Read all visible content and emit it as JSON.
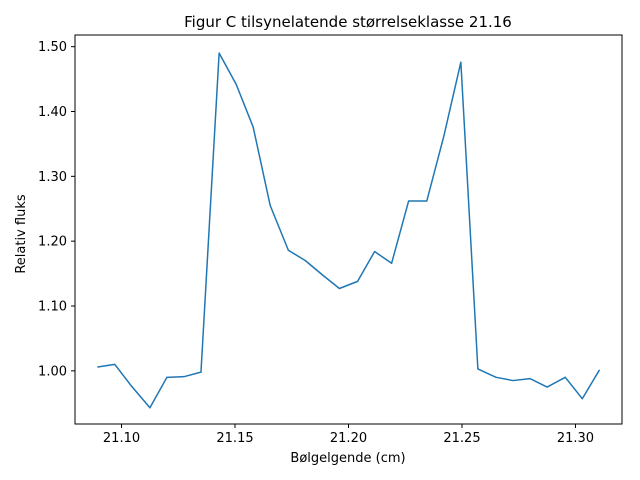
{
  "chart_data": {
    "type": "line",
    "title": "Figur C tilsynelatende størrelseklasse 21.16",
    "xlabel": "Bølgelgende (cm)",
    "ylabel": "Relativ fluks",
    "xlim": [
      21.0795,
      21.3205
    ],
    "ylim": [
      0.918,
      1.518
    ],
    "xticks": [
      21.1,
      21.15,
      21.2,
      21.25,
      21.3
    ],
    "xtick_labels": [
      "21.10",
      "21.15",
      "21.20",
      "21.25",
      "21.30"
    ],
    "yticks": [
      1.0,
      1.1,
      1.2,
      1.3,
      1.4,
      1.5
    ],
    "ytick_labels": [
      "1.00",
      "1.10",
      "1.20",
      "1.30",
      "1.40",
      "1.50"
    ],
    "grid": false,
    "line_color": "#1f77b4",
    "series": [
      {
        "x": [
          21.0895,
          21.097,
          21.1045,
          21.1125,
          21.12,
          21.1275,
          21.135,
          21.143,
          21.1505,
          21.158,
          21.1655,
          21.1735,
          21.181,
          21.1885,
          21.196,
          21.204,
          21.2115,
          21.219,
          21.2265,
          21.2345,
          21.242,
          21.2495,
          21.257,
          21.265,
          21.2725,
          21.28,
          21.2875,
          21.2955,
          21.303,
          21.3105
        ],
        "y": [
          1.006,
          1.01,
          0.976,
          0.943,
          0.99,
          0.991,
          0.998,
          1.49,
          1.442,
          1.376,
          1.255,
          1.186,
          1.17,
          1.148,
          1.127,
          1.138,
          1.184,
          1.166,
          1.262,
          1.262,
          1.362,
          1.476,
          1.003,
          0.99,
          0.985,
          0.988,
          0.975,
          0.99,
          0.957,
          1.001
        ]
      }
    ]
  }
}
